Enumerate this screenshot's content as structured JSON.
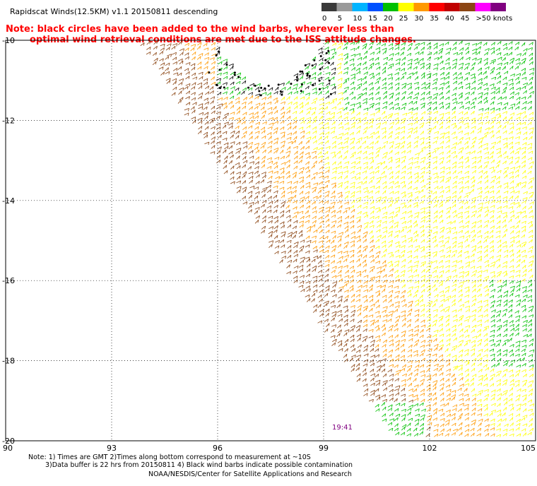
{
  "title": "Rapidscat Winds(12.5KM) v1.1 20150811 descending",
  "note": {
    "line1": "Note: black circles have been added to the wind barbs, wherever less than",
    "line2": "optimal wind retrieval conditions are met due to the ISS attitude changes."
  },
  "colorbar": {
    "labels": [
      "0",
      "5",
      "10",
      "15",
      "20",
      "25",
      "30",
      "35",
      "40",
      "45",
      ">50 knots"
    ],
    "colors": [
      "#3a3a3a",
      "#9a9a9a",
      "#00b4ff",
      "#0050ff",
      "#00c000",
      "#ffff00",
      "#ff9900",
      "#ff0000",
      "#c00000",
      "#8b4513",
      "#ff00ff",
      "#800080"
    ]
  },
  "map": {
    "lat_labels": [
      "-10",
      "-12",
      "-14",
      "-16",
      "-18",
      "-20"
    ],
    "lon_labels": [
      "90",
      "93",
      "96",
      "99",
      "102",
      "105"
    ]
  },
  "timestamp": "19:41",
  "footer": {
    "line1": "Note: 1) Times are GMT 2)Times along bottom correspond to measurement at ~10S",
    "line2": "3)Data buffer is 22 hrs from 20150811 4) Black wind barbs indicate possible contamination",
    "line3": "NOAA/NESDIS/Center for Satellite Applications and Research"
  }
}
